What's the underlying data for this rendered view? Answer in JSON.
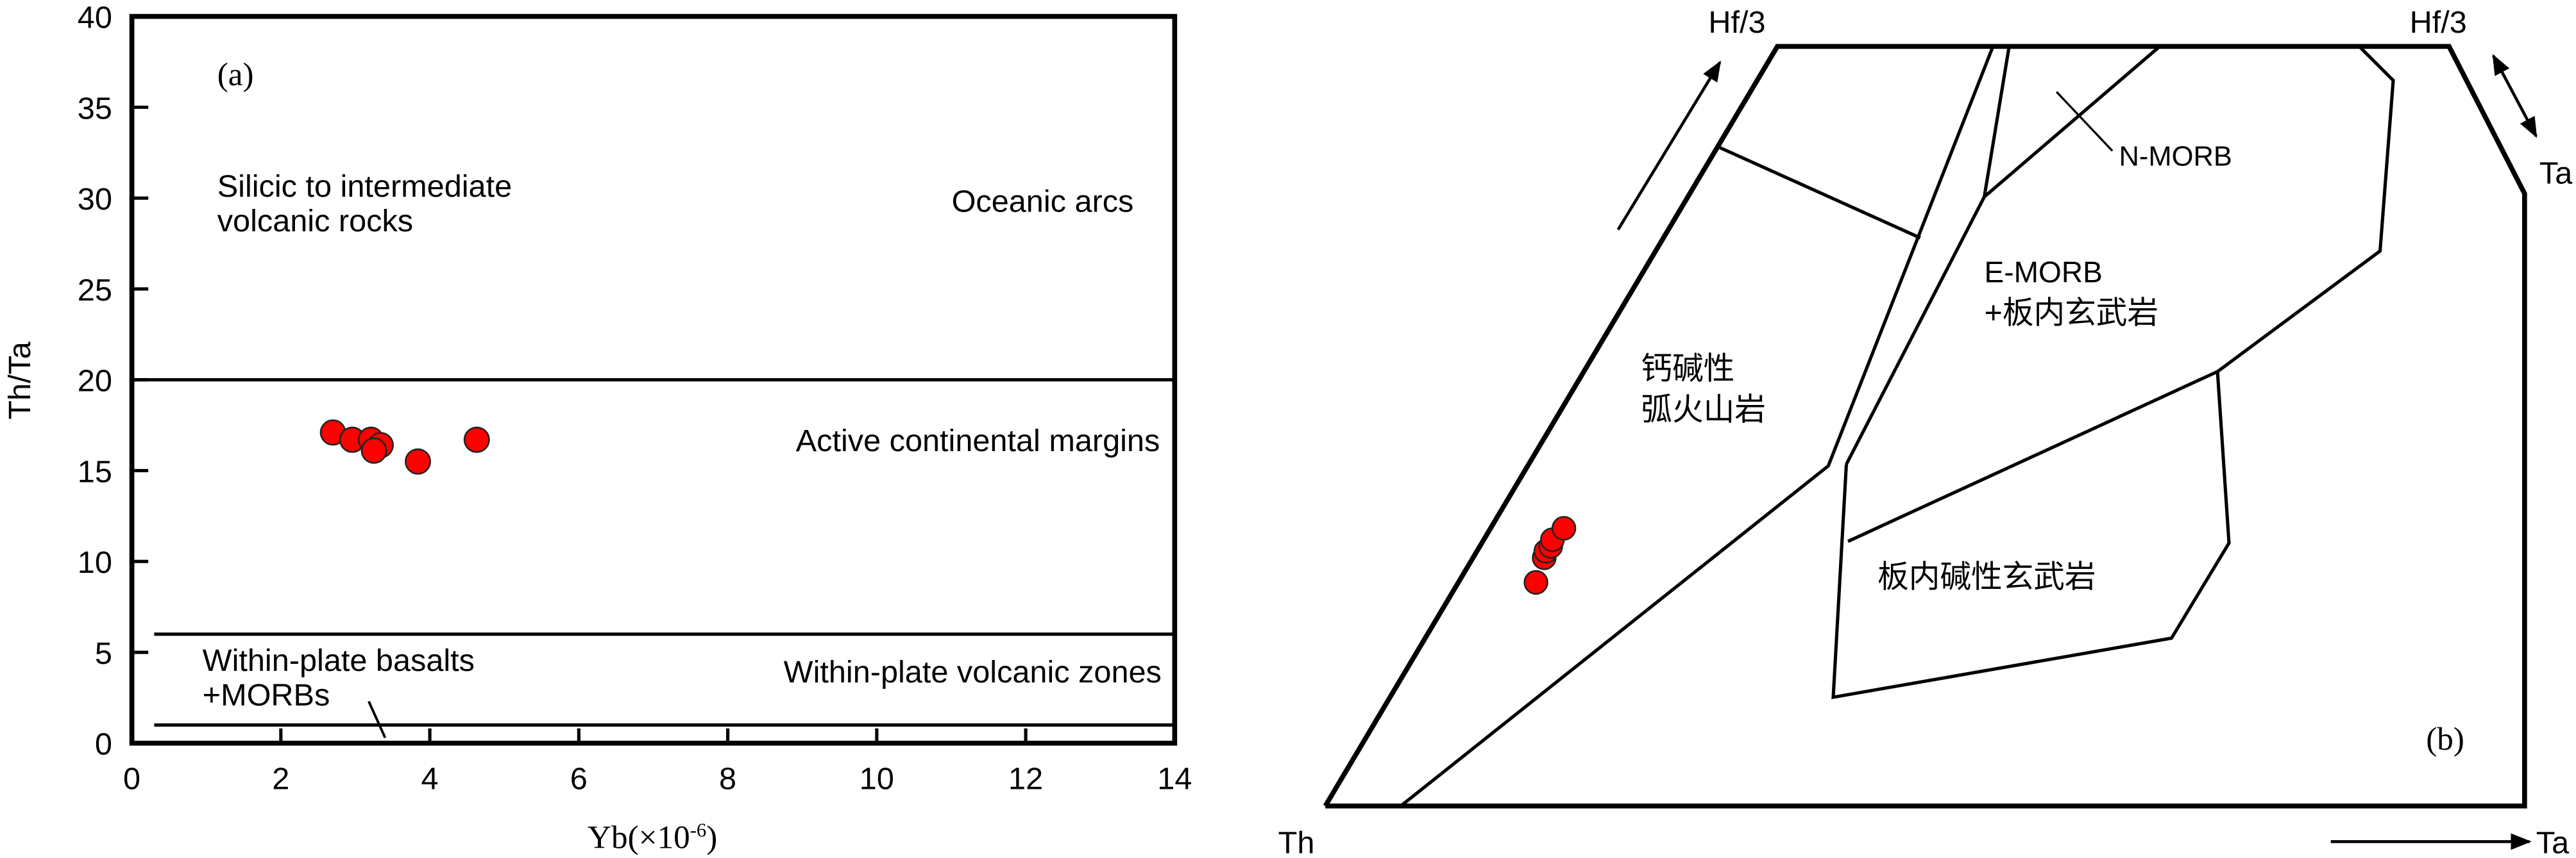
{
  "chart_data": [
    {
      "type": "scatter",
      "panel_label": "(a)",
      "xlabel": "Yb(×10",
      "xlabel_sup": "-6",
      "xlabel_end": ")",
      "ylabel": "Th/Ta",
      "xlim": [
        0,
        14
      ],
      "ylim": [
        0,
        40
      ],
      "xticks": [
        "0",
        "2",
        "4",
        "6",
        "8",
        "10",
        "12",
        "14"
      ],
      "yticks": [
        "0",
        "5",
        "10",
        "15",
        "20",
        "25",
        "30",
        "35",
        "40"
      ],
      "boundaries_y": [
        20,
        6,
        1
      ],
      "regions": {
        "silicic_line1": "Silicic to intermediate",
        "silicic_line2": "volcanic rocks",
        "oceanic": "Oceanic arcs",
        "active": "Active continental margins",
        "wpb_line1": "Within-plate basalts",
        "wpb_line2": "+MORBs",
        "wpvz": "Within-plate volcanic zones"
      },
      "points": [
        {
          "x": 2.7,
          "y": 17.1
        },
        {
          "x": 2.96,
          "y": 16.7
        },
        {
          "x": 3.21,
          "y": 16.7
        },
        {
          "x": 3.34,
          "y": 16.4
        },
        {
          "x": 3.25,
          "y": 16.1
        },
        {
          "x": 3.84,
          "y": 15.5
        },
        {
          "x": 4.63,
          "y": 16.7
        }
      ],
      "marker_color": "#ff0000",
      "grid": false
    },
    {
      "type": "scatter",
      "panel_label": "(b)",
      "vertices": {
        "top_left": "Hf/3",
        "top_right": "Hf/3",
        "right": "Ta",
        "bottom_left": "Th",
        "bottom_right": "Ta"
      },
      "regions": {
        "calc_line1": "钙碱性",
        "calc_line2": "弧火山岩",
        "nmorb": "N-MORB",
        "emorb_line1": "E-MORB",
        "emorb_line2": "+板内玄武岩",
        "alkaline": "板内碱性玄武岩"
      },
      "marker_color": "#ff0000",
      "point_count": 6
    }
  ]
}
